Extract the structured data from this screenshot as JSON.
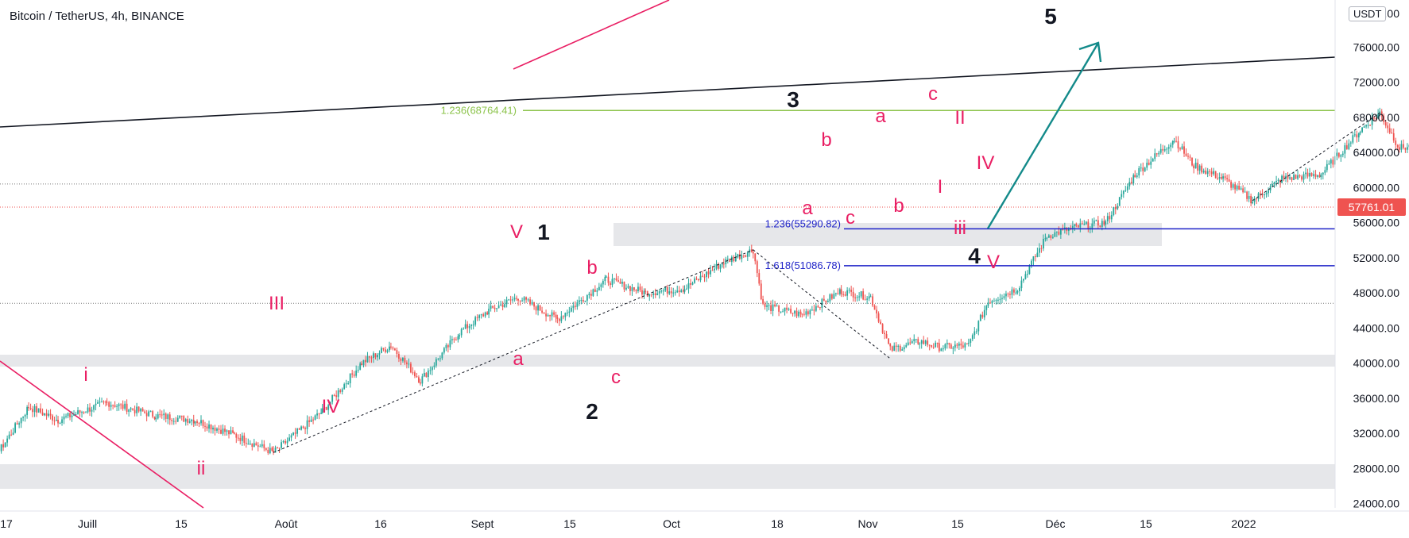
{
  "header": {
    "title": "Bitcoin / TetherUS, 4h, BINANCE"
  },
  "price_axis": {
    "unit": "USDT"
  },
  "chart_data": {
    "type": "candlestick",
    "title": "Bitcoin / TetherUS, 4h, BINANCE",
    "ylim": [
      24000,
      80000
    ],
    "y_ticks": [
      "24000.00",
      "28000.00",
      "32000.00",
      "36000.00",
      "40000.00",
      "44000.00",
      "48000.00",
      "52000.00",
      "56000.00",
      "60000.00",
      "64000.00",
      "68000.00",
      "72000.00",
      "76000.00"
    ],
    "x_ticks": [
      "17",
      "Juill",
      "15",
      "Août",
      "16",
      "Sept",
      "15",
      "Oct",
      "18",
      "Nov",
      "15",
      "Déc",
      "15",
      "2022"
    ],
    "last_price": "57761.01",
    "price_path": [
      [
        "2021-06-17",
        40000
      ],
      [
        "2021-06-20",
        36000
      ],
      [
        "2021-06-22",
        30000
      ],
      [
        "2021-06-25",
        35000
      ],
      [
        "2021-06-28",
        33500
      ],
      [
        "2021-07-03",
        35500
      ],
      [
        "2021-07-08",
        34000
      ],
      [
        "2021-07-12",
        33500
      ],
      [
        "2021-07-16",
        31800
      ],
      [
        "2021-07-20",
        29800
      ],
      [
        "2021-07-25",
        34500
      ],
      [
        "2021-07-29",
        40000
      ],
      [
        "2021-08-01",
        42000
      ],
      [
        "2021-08-04",
        38000
      ],
      [
        "2021-08-08",
        43500
      ],
      [
        "2021-08-11",
        46000
      ],
      [
        "2021-08-14",
        47500
      ],
      [
        "2021-08-18",
        45000
      ],
      [
        "2021-08-23",
        49500
      ],
      [
        "2021-08-27",
        48000
      ],
      [
        "2021-08-31",
        48500
      ],
      [
        "2021-09-04",
        51500
      ],
      [
        "2021-09-07",
        52900
      ],
      [
        "2021-09-08",
        46500
      ],
      [
        "2021-09-12",
        45500
      ],
      [
        "2021-09-16",
        48200
      ],
      [
        "2021-09-19",
        47500
      ],
      [
        "2021-09-21",
        41500
      ],
      [
        "2021-09-24",
        42500
      ],
      [
        "2021-09-26",
        41800
      ],
      [
        "2021-09-29",
        42000
      ],
      [
        "2021-10-01",
        47000
      ],
      [
        "2021-10-04",
        48500
      ],
      [
        "2021-10-07",
        54500
      ],
      [
        "2021-10-10",
        55500
      ],
      [
        "2021-10-13",
        56000
      ],
      [
        "2021-10-16",
        61500
      ],
      [
        "2021-10-20",
        65500
      ],
      [
        "2021-10-22",
        62500
      ],
      [
        "2021-10-25",
        61000
      ],
      [
        "2021-10-28",
        58500
      ],
      [
        "2021-10-31",
        61000
      ],
      [
        "2021-11-04",
        61500
      ],
      [
        "2021-11-08",
        66500
      ],
      [
        "2021-11-10",
        68500
      ],
      [
        "2021-11-12",
        64500
      ],
      [
        "2021-11-14",
        64800
      ],
      [
        "2021-11-16",
        61000
      ],
      [
        "2021-11-18",
        58000
      ],
      [
        "2021-11-19",
        57761
      ]
    ],
    "horizontal_lines": [
      {
        "label": "1.236(68764.41)",
        "value": 68764.41,
        "color": "#8bc34a"
      },
      {
        "label": "1.236(55290.82)",
        "value": 55290.82,
        "color": "#1e22c8"
      },
      {
        "label": "1.618(51086.78)",
        "value": 51086.78,
        "color": "#1e22c8"
      }
    ],
    "wave_labels": {
      "major": [
        "1",
        "2",
        "3",
        "4",
        "5"
      ],
      "intermediate": [
        "i",
        "ii",
        "III",
        "IV",
        "V",
        "a",
        "b",
        "c",
        "a",
        "b",
        "c",
        "a",
        "b",
        "c",
        "I",
        "II",
        "iii",
        "IV",
        "V"
      ]
    },
    "colors": {
      "up": "#26a69a",
      "down": "#ef5350",
      "label_red": "#e91e63",
      "arrow": "#138a8a",
      "trendline": "#131722"
    }
  }
}
